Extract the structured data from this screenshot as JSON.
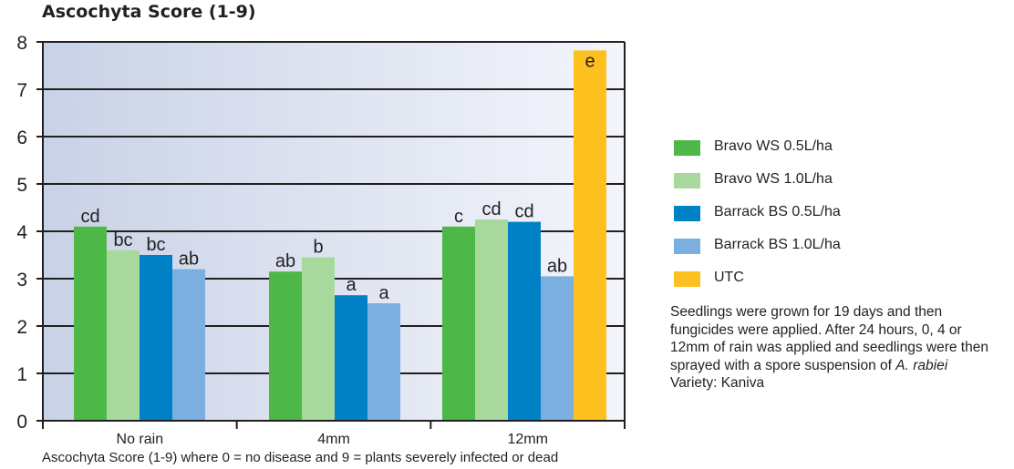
{
  "chart_data": {
    "type": "bar",
    "title": "Ascochyta Score (1-9)",
    "categories": [
      "No rain",
      "4mm",
      "12mm"
    ],
    "ylim": [
      0,
      8
    ],
    "yticks": [
      0,
      1,
      2,
      3,
      4,
      5,
      6,
      7,
      8
    ],
    "grid": "horizontal",
    "legend_position": "right",
    "series": [
      {
        "name": "Bravo WS 0.5L/ha",
        "color": "#4db848",
        "values": [
          4.1,
          3.15,
          4.1
        ],
        "labels": [
          "cd",
          "ab",
          "c"
        ]
      },
      {
        "name": "Bravo WS 1.0L/ha",
        "color": "#a8d99c",
        "values": [
          3.6,
          3.45,
          4.25
        ],
        "labels": [
          "bc",
          "b",
          "cd"
        ]
      },
      {
        "name": "Barrack BS 0.5L/ha",
        "color": "#0081c6",
        "values": [
          3.5,
          2.65,
          4.2
        ],
        "labels": [
          "bc",
          "a",
          "cd"
        ]
      },
      {
        "name": "Barrack BS 1.0L/ha",
        "color": "#7aafe0",
        "values": [
          3.2,
          2.48,
          3.05
        ],
        "labels": [
          "ab",
          "a",
          "ab"
        ]
      },
      {
        "name": "UTC",
        "color": "#fcc11f",
        "values": [
          null,
          null,
          7.82
        ],
        "labels": [
          null,
          null,
          "e"
        ]
      }
    ]
  },
  "note": {
    "text": "Seedlings were grown for 19 days and then fungicides were applied. After 24 hours, 0, 4 or 12mm of rain was applied and seedlings were then sprayed with a spore suspension of",
    "species": "A. rabiei",
    "variety": "Variety: Kaniva"
  },
  "caption": "Ascochyta Score (1-9) where 0 = no disease and 9 = plants severely infected or dead"
}
